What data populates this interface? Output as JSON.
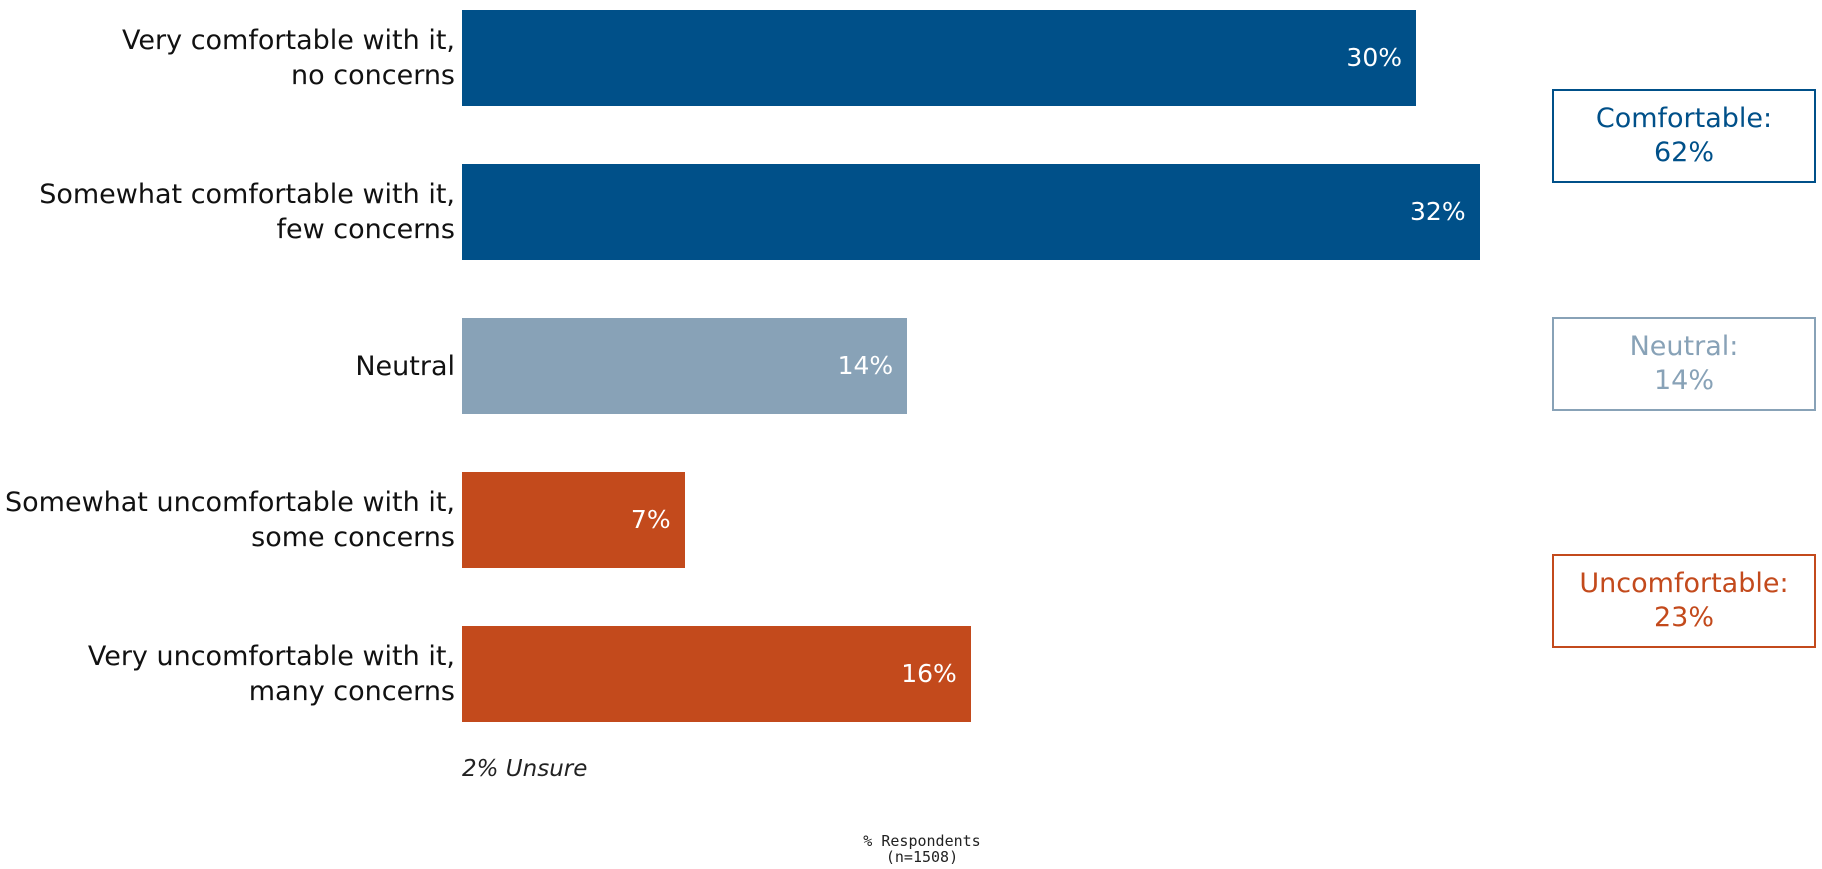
{
  "chart_data": {
    "type": "bar",
    "orientation": "horizontal",
    "categories": [
      "Very comfortable with it,\nno concerns",
      "Somewhat comfortable with it,\nfew concerns",
      "Neutral",
      "Somewhat uncomfortable with it,\nsome concerns",
      "Very uncomfortable with it,\nmany concerns"
    ],
    "values": [
      30,
      32,
      14,
      7,
      16
    ],
    "value_labels": [
      "30%",
      "32%",
      "14%",
      "7%",
      "16%"
    ],
    "bar_colors": [
      "#005089",
      "#005089",
      "#88a2b7",
      "#c34a1c",
      "#c34a1c"
    ],
    "xlim": [
      0,
      32
    ],
    "grid": false,
    "xlabel": "% Respondents",
    "sample_note": "(n=1508)",
    "note": "2% Unsure",
    "summaries": [
      {
        "label": "Comfortable:",
        "value": "62%",
        "color": "#005089"
      },
      {
        "label": "Neutral:",
        "value": "14%",
        "color": "#88a2b7"
      },
      {
        "label": "Uncomfortable:",
        "value": "23%",
        "color": "#c34a1c"
      }
    ]
  }
}
